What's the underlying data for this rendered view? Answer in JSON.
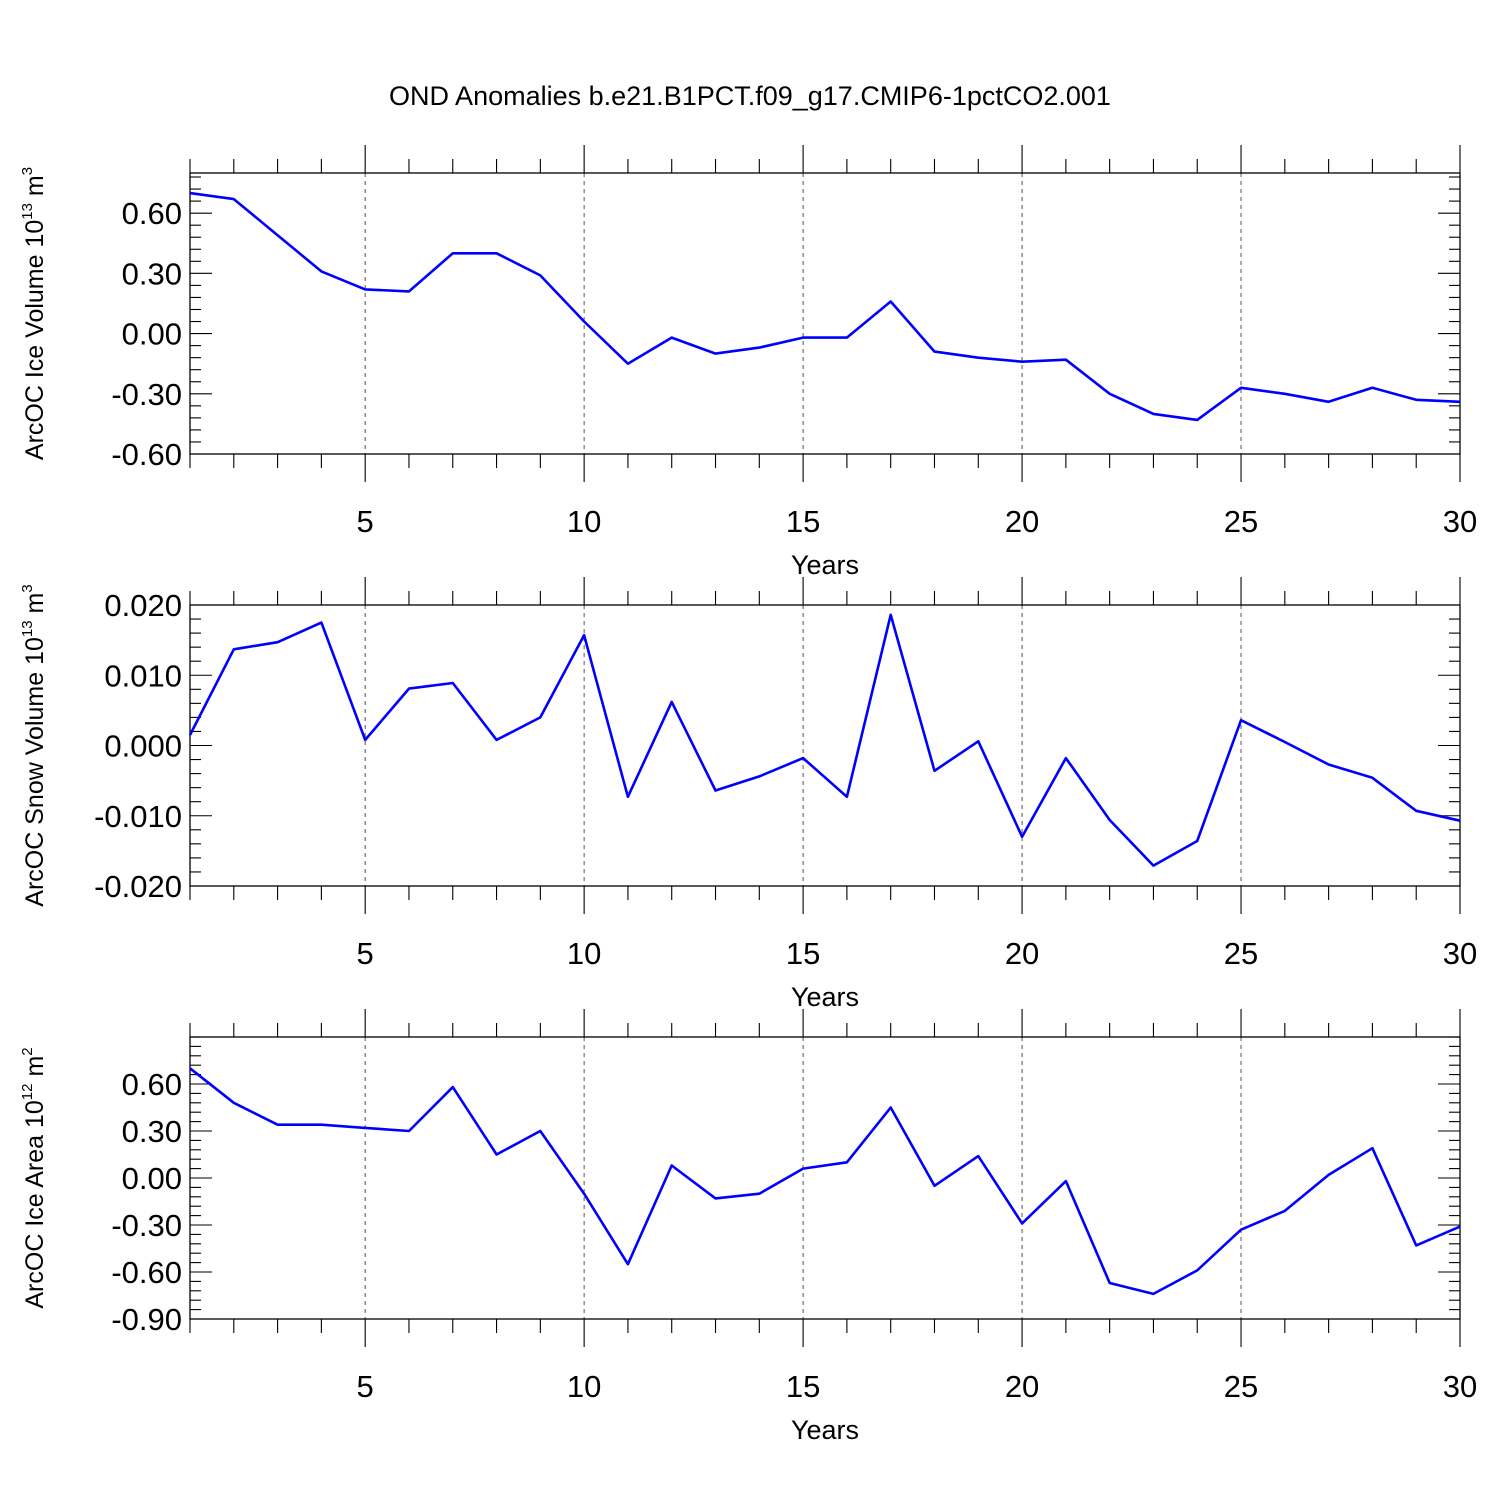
{
  "title": "OND Anomalies b.e21.B1PCT.f09_g17.CMIP6-1pctCO2.001",
  "colors": {
    "series": "#0000ff",
    "axis": "#000000",
    "grid": "#555555"
  },
  "chart_data": [
    {
      "type": "line",
      "xlabel": "Years",
      "ylabel": {
        "text": "ArcOC Ice Volume 10",
        "sup1": "13",
        "mid": " m",
        "sup2": "3"
      },
      "xlim": [
        1,
        30
      ],
      "ylim": [
        -0.6,
        0.8
      ],
      "xticks": [
        5,
        10,
        15,
        20,
        25,
        30
      ],
      "xtick_labels": [
        "5",
        "10",
        "15",
        "20",
        "25",
        "30"
      ],
      "yticks": [
        0.6,
        0.3,
        0.0,
        -0.3,
        -0.6
      ],
      "ytick_labels": [
        "0.60",
        "0.30",
        "0.00",
        "-0.30",
        "-0.60"
      ],
      "grid": "vertical dashed at major x ticks",
      "x": [
        1,
        2,
        3,
        4,
        5,
        6,
        7,
        8,
        9,
        10,
        11,
        12,
        13,
        14,
        15,
        16,
        17,
        18,
        19,
        20,
        21,
        22,
        23,
        24,
        25,
        26,
        27,
        28,
        29,
        30
      ],
      "series": [
        {
          "values": [
            0.7,
            0.67,
            0.49,
            0.31,
            0.22,
            0.21,
            0.4,
            0.4,
            0.29,
            0.06,
            -0.15,
            -0.02,
            -0.1,
            -0.07,
            -0.02,
            -0.02,
            0.16,
            -0.09,
            -0.12,
            -0.14,
            -0.13,
            -0.3,
            -0.4,
            -0.43,
            -0.27,
            -0.3,
            -0.34,
            -0.27,
            -0.33,
            -0.34
          ]
        }
      ]
    },
    {
      "type": "line",
      "xlabel": "Years",
      "ylabel": {
        "text": "ArcOC Snow Volume 10",
        "sup1": "13",
        "mid": " m",
        "sup2": "3"
      },
      "xlim": [
        1,
        30
      ],
      "ylim": [
        -0.02,
        0.02
      ],
      "xticks": [
        5,
        10,
        15,
        20,
        25,
        30
      ],
      "xtick_labels": [
        "5",
        "10",
        "15",
        "20",
        "25",
        "30"
      ],
      "yticks": [
        0.02,
        0.01,
        0.0,
        -0.01,
        -0.02
      ],
      "ytick_labels": [
        "0.020",
        "0.010",
        "0.000",
        "-0.010",
        "-0.020"
      ],
      "grid": "vertical dashed at major x ticks",
      "x": [
        1,
        2,
        3,
        4,
        5,
        6,
        7,
        8,
        9,
        10,
        11,
        12,
        13,
        14,
        15,
        16,
        17,
        18,
        19,
        20,
        21,
        22,
        23,
        24,
        25,
        26,
        27,
        28,
        29,
        30
      ],
      "series": [
        {
          "values": [
            0.0015,
            0.0137,
            0.0147,
            0.0175,
            0.0008,
            0.0081,
            0.0089,
            0.0008,
            0.004,
            0.0157,
            -0.0073,
            0.0062,
            -0.0064,
            -0.0044,
            -0.0018,
            -0.0073,
            0.0186,
            -0.0036,
            0.0006,
            -0.013,
            -0.0018,
            -0.0106,
            -0.0171,
            -0.0136,
            0.0036,
            0.0005,
            -0.0027,
            -0.0046,
            -0.0093,
            -0.0107
          ]
        }
      ]
    },
    {
      "type": "line",
      "xlabel": "Years",
      "ylabel": {
        "text": "ArcOC Ice Area 10",
        "sup1": "12",
        "mid": " m",
        "sup2": "2"
      },
      "xlim": [
        1,
        30
      ],
      "ylim": [
        -0.9,
        0.9
      ],
      "xticks": [
        5,
        10,
        15,
        20,
        25,
        30
      ],
      "xtick_labels": [
        "5",
        "10",
        "15",
        "20",
        "25",
        "30"
      ],
      "yticks": [
        0.6,
        0.3,
        0.0,
        -0.3,
        -0.6,
        -0.9
      ],
      "ytick_labels": [
        "0.60",
        "0.30",
        "0.00",
        "-0.30",
        "-0.60",
        "-0.90"
      ],
      "grid": "vertical dashed at major x ticks",
      "x": [
        1,
        2,
        3,
        4,
        5,
        6,
        7,
        8,
        9,
        10,
        11,
        12,
        13,
        14,
        15,
        16,
        17,
        18,
        19,
        20,
        21,
        22,
        23,
        24,
        25,
        26,
        27,
        28,
        29,
        30
      ],
      "series": [
        {
          "values": [
            0.7,
            0.48,
            0.34,
            0.34,
            0.32,
            0.3,
            0.58,
            0.15,
            0.3,
            -0.1,
            -0.55,
            0.08,
            -0.13,
            -0.1,
            0.06,
            0.1,
            0.45,
            -0.05,
            0.14,
            -0.29,
            -0.02,
            -0.67,
            -0.74,
            -0.59,
            -0.33,
            -0.21,
            0.02,
            0.19,
            -0.43,
            -0.31
          ]
        }
      ]
    }
  ]
}
